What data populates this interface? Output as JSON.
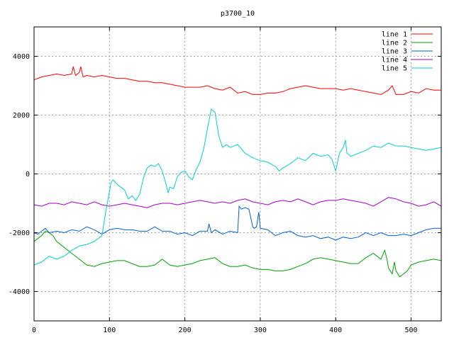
{
  "chart_data": {
    "type": "line",
    "title": "p3700_10",
    "xlabel": "",
    "ylabel": "",
    "xlim": [
      0,
      540
    ],
    "ylim": [
      -5000,
      5000
    ],
    "x_ticks": [
      0,
      100,
      200,
      300,
      400,
      500
    ],
    "y_ticks": [
      -4000,
      -2000,
      0,
      2000,
      4000
    ],
    "grid": true,
    "legend_position": "top-right",
    "series": [
      {
        "name": "line 1",
        "color": "#ff0000",
        "x": [
          0,
          10,
          20,
          30,
          40,
          50,
          52,
          55,
          60,
          62,
          65,
          70,
          80,
          90,
          100,
          110,
          120,
          130,
          140,
          150,
          160,
          170,
          180,
          190,
          200,
          210,
          220,
          230,
          240,
          250,
          260,
          270,
          280,
          290,
          300,
          310,
          320,
          330,
          340,
          350,
          360,
          370,
          380,
          390,
          400,
          410,
          420,
          430,
          440,
          450,
          460,
          470,
          475,
          480,
          490,
          500,
          510,
          520,
          530,
          540
        ],
        "y": [
          3200,
          3300,
          3350,
          3400,
          3350,
          3400,
          3650,
          3350,
          3450,
          3650,
          3300,
          3350,
          3300,
          3350,
          3300,
          3250,
          3250,
          3200,
          3150,
          3150,
          3100,
          3100,
          3050,
          3000,
          2950,
          2950,
          2950,
          3000,
          2900,
          2850,
          2950,
          2750,
          2800,
          2700,
          2700,
          2750,
          2750,
          2800,
          2900,
          2950,
          3000,
          2950,
          2900,
          2900,
          2900,
          2850,
          2900,
          2850,
          2800,
          2750,
          2700,
          2850,
          3000,
          2700,
          2700,
          2800,
          2750,
          2900,
          2850,
          2850
        ]
      },
      {
        "name": "line 2",
        "color": "#00a000",
        "x": [
          0,
          5,
          10,
          15,
          20,
          25,
          30,
          40,
          50,
          60,
          70,
          80,
          90,
          100,
          110,
          120,
          130,
          140,
          150,
          160,
          170,
          180,
          190,
          200,
          210,
          220,
          230,
          240,
          250,
          260,
          270,
          280,
          290,
          300,
          310,
          320,
          330,
          340,
          350,
          360,
          370,
          380,
          390,
          400,
          410,
          420,
          430,
          440,
          450,
          460,
          465,
          468,
          470,
          475,
          478,
          480,
          485,
          490,
          495,
          500,
          510,
          520,
          530,
          540
        ],
        "y": [
          -2300,
          -2200,
          -2100,
          -1950,
          -2000,
          -2100,
          -2300,
          -2500,
          -2700,
          -2900,
          -3100,
          -3150,
          -3050,
          -3000,
          -2950,
          -2950,
          -3050,
          -3150,
          -3150,
          -3100,
          -2900,
          -3100,
          -3150,
          -3100,
          -3050,
          -2950,
          -2900,
          -2850,
          -3050,
          -3150,
          -3150,
          -3100,
          -3200,
          -3250,
          -3250,
          -3300,
          -3300,
          -3250,
          -3150,
          -3050,
          -2900,
          -2850,
          -2900,
          -2950,
          -3000,
          -3050,
          -3050,
          -2850,
          -2700,
          -2900,
          -2600,
          -2900,
          -3200,
          -3400,
          -3000,
          -3300,
          -3500,
          -3400,
          -3300,
          -3100,
          -3000,
          -2950,
          -2900,
          -2950
        ]
      },
      {
        "name": "line 3",
        "color": "#0060d0",
        "x": [
          0,
          5,
          10,
          15,
          20,
          30,
          40,
          50,
          60,
          70,
          80,
          90,
          100,
          110,
          120,
          130,
          140,
          150,
          160,
          170,
          180,
          190,
          200,
          210,
          220,
          230,
          232,
          235,
          240,
          250,
          260,
          270,
          272,
          275,
          280,
          285,
          290,
          292,
          295,
          298,
          300,
          310,
          320,
          330,
          340,
          350,
          360,
          370,
          380,
          390,
          400,
          410,
          420,
          430,
          440,
          450,
          460,
          470,
          480,
          490,
          500,
          510,
          520,
          530,
          540
        ],
        "y": [
          -2000,
          -2050,
          -1950,
          -1850,
          -2000,
          -1950,
          -2000,
          -1900,
          -1950,
          -1800,
          -1900,
          -2050,
          -1900,
          -1850,
          -1900,
          -1900,
          -1950,
          -1950,
          -1800,
          -1950,
          -1950,
          -2050,
          -2000,
          -2100,
          -1950,
          -1950,
          -1700,
          -2000,
          -1900,
          -2050,
          -1950,
          -2000,
          -1100,
          -1200,
          -1150,
          -1200,
          -1800,
          -1850,
          -1800,
          -1300,
          -1850,
          -1900,
          -2100,
          -2000,
          -1950,
          -2100,
          -2150,
          -2100,
          -2200,
          -2150,
          -2250,
          -2150,
          -2200,
          -2150,
          -2000,
          -2100,
          -2000,
          -2100,
          -2100,
          -2050,
          -2100,
          -2000,
          -1900,
          -1850,
          -1850
        ]
      },
      {
        "name": "line 4",
        "color": "#a000c0",
        "x": [
          0,
          10,
          20,
          30,
          40,
          50,
          60,
          70,
          80,
          90,
          100,
          110,
          120,
          130,
          140,
          150,
          160,
          170,
          180,
          190,
          200,
          210,
          220,
          230,
          240,
          250,
          260,
          270,
          280,
          290,
          300,
          310,
          320,
          330,
          340,
          350,
          360,
          370,
          380,
          390,
          400,
          410,
          420,
          430,
          440,
          450,
          460,
          470,
          480,
          490,
          500,
          510,
          520,
          530,
          540
        ],
        "y": [
          -1050,
          -1100,
          -1000,
          -1000,
          -1050,
          -950,
          -1000,
          -1050,
          -950,
          -1050,
          -1100,
          -1050,
          -1000,
          -1050,
          -1100,
          -1150,
          -1050,
          -1000,
          -1000,
          -1050,
          -1000,
          -950,
          -900,
          -950,
          -1000,
          -950,
          -1000,
          -900,
          -850,
          -950,
          -1000,
          -1050,
          -950,
          -900,
          -950,
          -850,
          -950,
          -1050,
          -950,
          -900,
          -900,
          -850,
          -900,
          -950,
          -1000,
          -1100,
          -950,
          -800,
          -850,
          -950,
          -1000,
          -1100,
          -1050,
          -950,
          -1100
        ]
      },
      {
        "name": "line 5",
        "color": "#00d0d0",
        "x": [
          0,
          10,
          20,
          30,
          40,
          50,
          60,
          70,
          80,
          90,
          95,
          100,
          102,
          105,
          110,
          115,
          120,
          125,
          130,
          135,
          140,
          145,
          150,
          155,
          160,
          165,
          170,
          175,
          178,
          180,
          185,
          190,
          195,
          200,
          205,
          210,
          215,
          220,
          225,
          230,
          235,
          240,
          245,
          250,
          255,
          260,
          270,
          280,
          290,
          300,
          310,
          320,
          325,
          330,
          340,
          350,
          360,
          370,
          380,
          390,
          395,
          400,
          405,
          410,
          413,
          415,
          420,
          430,
          440,
          450,
          460,
          470,
          480,
          490,
          500,
          510,
          520,
          530,
          540
        ],
        "y": [
          -3100,
          -3000,
          -2800,
          -2900,
          -2800,
          -2600,
          -2450,
          -2400,
          -2300,
          -2100,
          -1300,
          -600,
          -300,
          -200,
          -350,
          -450,
          -550,
          -850,
          -750,
          -900,
          -700,
          -150,
          200,
          300,
          250,
          350,
          100,
          -350,
          -650,
          -450,
          -500,
          -100,
          50,
          100,
          -100,
          -200,
          150,
          400,
          850,
          1550,
          2200,
          2100,
          1300,
          900,
          1000,
          900,
          1000,
          700,
          550,
          450,
          400,
          250,
          100,
          200,
          350,
          550,
          450,
          700,
          600,
          650,
          500,
          100,
          700,
          900,
          1150,
          700,
          600,
          700,
          800,
          950,
          900,
          1050,
          950,
          950,
          900,
          850,
          800,
          850,
          900
        ]
      }
    ]
  }
}
